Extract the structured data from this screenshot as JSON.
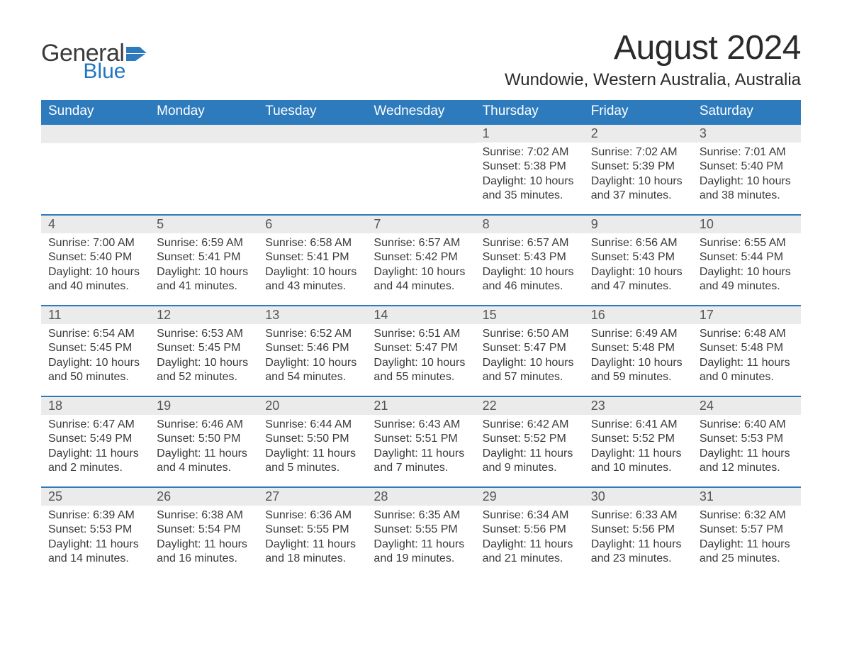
{
  "brand": {
    "word1": "General",
    "word2": "Blue",
    "color_primary": "#2176c1",
    "color_text": "#3a3a3a"
  },
  "title": "August 2024",
  "location": "Wundowie, Western Australia, Australia",
  "colors": {
    "header_bg": "#2d7bbd",
    "header_text": "#ffffff",
    "daynum_bg": "#ebebeb",
    "body_text": "#3a3a3a",
    "row_border": "#2d7bbd",
    "page_bg": "#ffffff"
  },
  "weekdays": [
    "Sunday",
    "Monday",
    "Tuesday",
    "Wednesday",
    "Thursday",
    "Friday",
    "Saturday"
  ],
  "grid": [
    [
      null,
      null,
      null,
      null,
      {
        "day": "1",
        "sunrise": "7:02 AM",
        "sunset": "5:38 PM",
        "daylight_h": "10",
        "daylight_m": "35"
      },
      {
        "day": "2",
        "sunrise": "7:02 AM",
        "sunset": "5:39 PM",
        "daylight_h": "10",
        "daylight_m": "37"
      },
      {
        "day": "3",
        "sunrise": "7:01 AM",
        "sunset": "5:40 PM",
        "daylight_h": "10",
        "daylight_m": "38"
      }
    ],
    [
      {
        "day": "4",
        "sunrise": "7:00 AM",
        "sunset": "5:40 PM",
        "daylight_h": "10",
        "daylight_m": "40"
      },
      {
        "day": "5",
        "sunrise": "6:59 AM",
        "sunset": "5:41 PM",
        "daylight_h": "10",
        "daylight_m": "41"
      },
      {
        "day": "6",
        "sunrise": "6:58 AM",
        "sunset": "5:41 PM",
        "daylight_h": "10",
        "daylight_m": "43"
      },
      {
        "day": "7",
        "sunrise": "6:57 AM",
        "sunset": "5:42 PM",
        "daylight_h": "10",
        "daylight_m": "44"
      },
      {
        "day": "8",
        "sunrise": "6:57 AM",
        "sunset": "5:43 PM",
        "daylight_h": "10",
        "daylight_m": "46"
      },
      {
        "day": "9",
        "sunrise": "6:56 AM",
        "sunset": "5:43 PM",
        "daylight_h": "10",
        "daylight_m": "47"
      },
      {
        "day": "10",
        "sunrise": "6:55 AM",
        "sunset": "5:44 PM",
        "daylight_h": "10",
        "daylight_m": "49"
      }
    ],
    [
      {
        "day": "11",
        "sunrise": "6:54 AM",
        "sunset": "5:45 PM",
        "daylight_h": "10",
        "daylight_m": "50"
      },
      {
        "day": "12",
        "sunrise": "6:53 AM",
        "sunset": "5:45 PM",
        "daylight_h": "10",
        "daylight_m": "52"
      },
      {
        "day": "13",
        "sunrise": "6:52 AM",
        "sunset": "5:46 PM",
        "daylight_h": "10",
        "daylight_m": "54"
      },
      {
        "day": "14",
        "sunrise": "6:51 AM",
        "sunset": "5:47 PM",
        "daylight_h": "10",
        "daylight_m": "55"
      },
      {
        "day": "15",
        "sunrise": "6:50 AM",
        "sunset": "5:47 PM",
        "daylight_h": "10",
        "daylight_m": "57"
      },
      {
        "day": "16",
        "sunrise": "6:49 AM",
        "sunset": "5:48 PM",
        "daylight_h": "10",
        "daylight_m": "59"
      },
      {
        "day": "17",
        "sunrise": "6:48 AM",
        "sunset": "5:48 PM",
        "daylight_h": "11",
        "daylight_m": "0"
      }
    ],
    [
      {
        "day": "18",
        "sunrise": "6:47 AM",
        "sunset": "5:49 PM",
        "daylight_h": "11",
        "daylight_m": "2"
      },
      {
        "day": "19",
        "sunrise": "6:46 AM",
        "sunset": "5:50 PM",
        "daylight_h": "11",
        "daylight_m": "4"
      },
      {
        "day": "20",
        "sunrise": "6:44 AM",
        "sunset": "5:50 PM",
        "daylight_h": "11",
        "daylight_m": "5"
      },
      {
        "day": "21",
        "sunrise": "6:43 AM",
        "sunset": "5:51 PM",
        "daylight_h": "11",
        "daylight_m": "7"
      },
      {
        "day": "22",
        "sunrise": "6:42 AM",
        "sunset": "5:52 PM",
        "daylight_h": "11",
        "daylight_m": "9"
      },
      {
        "day": "23",
        "sunrise": "6:41 AM",
        "sunset": "5:52 PM",
        "daylight_h": "11",
        "daylight_m": "10"
      },
      {
        "day": "24",
        "sunrise": "6:40 AM",
        "sunset": "5:53 PM",
        "daylight_h": "11",
        "daylight_m": "12"
      }
    ],
    [
      {
        "day": "25",
        "sunrise": "6:39 AM",
        "sunset": "5:53 PM",
        "daylight_h": "11",
        "daylight_m": "14"
      },
      {
        "day": "26",
        "sunrise": "6:38 AM",
        "sunset": "5:54 PM",
        "daylight_h": "11",
        "daylight_m": "16"
      },
      {
        "day": "27",
        "sunrise": "6:36 AM",
        "sunset": "5:55 PM",
        "daylight_h": "11",
        "daylight_m": "18"
      },
      {
        "day": "28",
        "sunrise": "6:35 AM",
        "sunset": "5:55 PM",
        "daylight_h": "11",
        "daylight_m": "19"
      },
      {
        "day": "29",
        "sunrise": "6:34 AM",
        "sunset": "5:56 PM",
        "daylight_h": "11",
        "daylight_m": "21"
      },
      {
        "day": "30",
        "sunrise": "6:33 AM",
        "sunset": "5:56 PM",
        "daylight_h": "11",
        "daylight_m": "23"
      },
      {
        "day": "31",
        "sunrise": "6:32 AM",
        "sunset": "5:57 PM",
        "daylight_h": "11",
        "daylight_m": "25"
      }
    ]
  ],
  "labels": {
    "sunrise_prefix": "Sunrise: ",
    "sunset_prefix": "Sunset: ",
    "daylight_prefix": "Daylight: ",
    "hours_word": " hours",
    "and_word": "and ",
    "minutes_word": " minutes."
  }
}
